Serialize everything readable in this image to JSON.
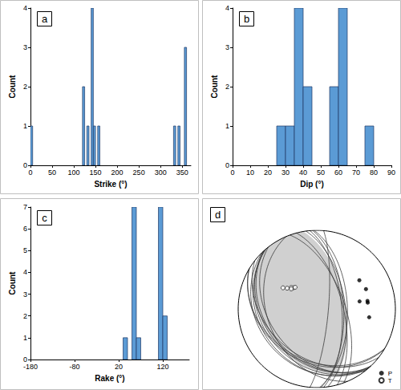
{
  "chart_data": [
    {
      "type": "histogram",
      "title": "a",
      "xlabel": "Strike (°)",
      "ylabel": "Count",
      "bins": [
        0,
        5,
        10,
        15,
        20,
        25,
        30,
        35,
        40,
        45,
        50,
        55,
        60,
        65,
        70,
        75,
        80,
        85,
        90,
        95,
        100,
        105,
        110,
        115,
        120,
        125,
        130,
        135,
        140,
        145,
        150,
        155,
        160,
        165,
        170,
        175,
        180,
        185,
        190,
        195,
        200,
        205,
        210,
        215,
        220,
        225,
        230,
        235,
        240,
        245,
        250,
        255,
        260,
        265,
        270,
        275,
        280,
        285,
        290,
        295,
        300,
        305,
        310,
        315,
        320,
        325,
        330,
        335,
        340,
        345,
        350,
        355,
        360
      ],
      "values": [
        1,
        0,
        0,
        0,
        0,
        0,
        0,
        0,
        0,
        0,
        0,
        0,
        0,
        0,
        0,
        0,
        0,
        0,
        0,
        0,
        0,
        0,
        0,
        0,
        2,
        0,
        1,
        0,
        4,
        1,
        0,
        1,
        0,
        0,
        0,
        0,
        0,
        0,
        0,
        0,
        0,
        0,
        0,
        0,
        0,
        0,
        0,
        0,
        0,
        0,
        0,
        0,
        0,
        0,
        0,
        0,
        0,
        0,
        0,
        0,
        0,
        0,
        0,
        0,
        0,
        0,
        1,
        0,
        1,
        0,
        0,
        3
      ],
      "color": "#5b9bd5",
      "xlim": [
        0,
        370
      ],
      "xticks": [
        0,
        50,
        100,
        150,
        200,
        250,
        300,
        350
      ],
      "ylim": [
        0,
        4
      ],
      "yticks": [
        0,
        1,
        2,
        3,
        4
      ],
      "grid": false
    },
    {
      "type": "histogram",
      "title": "b",
      "xlabel": "Dip (°)",
      "ylabel": "Count",
      "bins": [
        0,
        5,
        10,
        15,
        20,
        25,
        30,
        35,
        40,
        45,
        50,
        55,
        60,
        65,
        70,
        75,
        80,
        85,
        90
      ],
      "values": [
        0,
        0,
        0,
        0,
        0,
        1,
        1,
        4,
        2,
        0,
        0,
        2,
        4,
        0,
        0,
        1,
        0,
        0
      ],
      "color": "#5b9bd5",
      "xlim": [
        0,
        90
      ],
      "xticks": [
        0,
        10,
        20,
        30,
        40,
        50,
        60,
        70,
        80,
        90
      ],
      "ylim": [
        0,
        4
      ],
      "yticks": [
        0,
        1,
        2,
        3,
        4
      ],
      "grid": false
    },
    {
      "type": "histogram",
      "title": "c",
      "xlabel": "Rake (°)",
      "ylabel": "Count",
      "bins": [
        -180,
        -170,
        -160,
        -150,
        -140,
        -130,
        -120,
        -110,
        -100,
        -90,
        -80,
        -70,
        -60,
        -50,
        -40,
        -30,
        -20,
        -10,
        0,
        10,
        20,
        30,
        40,
        50,
        60,
        70,
        80,
        90,
        100,
        110,
        120,
        130,
        140,
        150,
        160,
        170,
        180
      ],
      "values": [
        0,
        0,
        0,
        0,
        0,
        0,
        0,
        0,
        0,
        0,
        0,
        0,
        0,
        0,
        0,
        0,
        0,
        0,
        0,
        0,
        0,
        1,
        0,
        7,
        1,
        0,
        0,
        0,
        0,
        7,
        2,
        0,
        0,
        0,
        0,
        0
      ],
      "color": "#5b9bd5",
      "xlim": [
        -180,
        180
      ],
      "xticks": [
        -180,
        -80,
        20,
        120
      ],
      "ylim": [
        0,
        7
      ],
      "yticks": [
        0,
        1,
        2,
        3,
        4,
        5,
        6,
        7
      ],
      "grid": false
    },
    {
      "type": "stereonet",
      "title": "d",
      "tick_labels": false,
      "legend": "lower right",
      "planes": [
        {
          "strike": 357,
          "dip": 62
        },
        {
          "strike": 352,
          "dip": 60
        },
        {
          "strike": 355,
          "dip": 64
        },
        {
          "strike": 358,
          "dip": 58
        },
        {
          "strike": 345,
          "dip": 63
        },
        {
          "strike": 340,
          "dip": 61
        },
        {
          "strike": 5,
          "dip": 78
        },
        {
          "strike": 120,
          "dip": 35
        },
        {
          "strike": 121,
          "dip": 33
        },
        {
          "strike": 128,
          "dip": 38
        },
        {
          "strike": 137,
          "dip": 34
        },
        {
          "strike": 138,
          "dip": 36
        },
        {
          "strike": 139,
          "dip": 31
        },
        {
          "strike": 140,
          "dip": 28
        },
        {
          "strike": 142,
          "dip": 40
        },
        {
          "strike": 157,
          "dip": 37
        },
        {
          "strike": 136,
          "dip": 26
        }
      ],
      "shaded_planes": [
        {
          "strike": 350,
          "dip": 60
        },
        {
          "strike": 140,
          "dip": 32
        }
      ],
      "series": [
        {
          "name": "P",
          "color": "#000000",
          "marker": "filled",
          "trend": [
            56,
            68,
            80,
            81,
            83,
            99
          ],
          "plunge": [
            35,
            33,
            44,
            35,
            35,
            33
          ]
        },
        {
          "name": "T",
          "color": "#ffffff",
          "marker": "open",
          "trend": [
            302,
            312,
            310,
            315,
            308,
            305
          ],
          "plunge": [
            48,
            57,
            55,
            58,
            56,
            52
          ]
        }
      ]
    }
  ]
}
